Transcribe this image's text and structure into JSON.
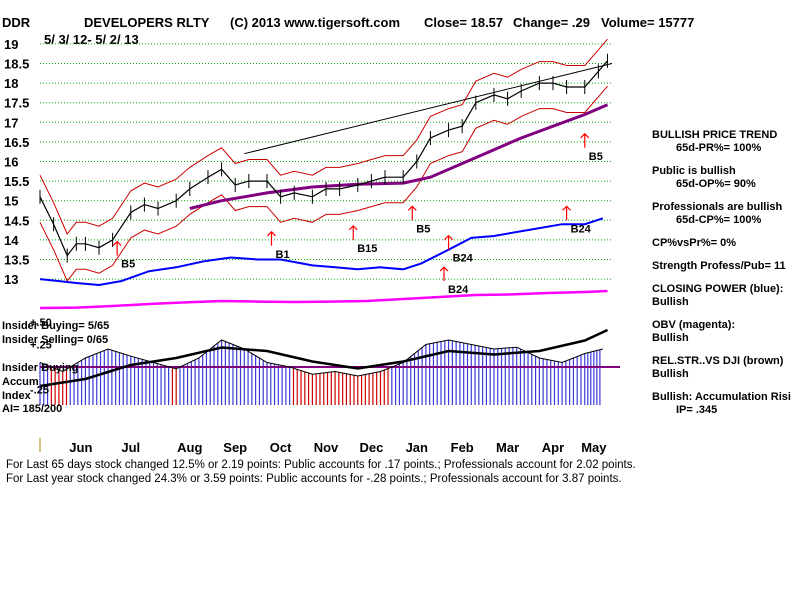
{
  "header": {
    "symbol": "DDR",
    "name": "DEVELOPERS RLTY",
    "copyright": "(C) 2013 www.tigersoft.com",
    "close_label": "Close=  18.57",
    "change_label": "Change= .29",
    "volume_label": "Volume= 15777",
    "date_range": "5/ 3/ 12- 5/ 2/ 13"
  },
  "chart_data": {
    "type": "line",
    "title": "DEVELOPERS RLTY",
    "price_axis": {
      "ylim": [
        12.9,
        19.1
      ],
      "ticks": [
        13,
        13.5,
        14,
        14.5,
        15,
        15.5,
        16,
        16.5,
        17,
        17.5,
        18,
        18.5,
        19
      ],
      "tick_labels": [
        "13",
        "13.5",
        "14",
        "14.5",
        "15",
        "15.5",
        "16",
        "16.5",
        "17",
        "17.5",
        "18",
        "18.5",
        "19"
      ]
    },
    "months": [
      "Jun",
      "Jul",
      "Aug",
      "Sep",
      "Oct",
      "Nov",
      "Dec",
      "Jan",
      "Feb",
      "Mar",
      "Apr",
      "May"
    ],
    "month_x_index": [
      0.9,
      2.0,
      3.3,
      4.3,
      5.3,
      6.3,
      7.3,
      8.3,
      9.3,
      10.3,
      11.3,
      12.2
    ],
    "x_domain": [
      0,
      12.6
    ],
    "price_series": {
      "name": "Close",
      "t": [
        0,
        0.3,
        0.6,
        0.8,
        1.0,
        1.3,
        1.6,
        2.0,
        2.3,
        2.6,
        3.0,
        3.3,
        3.7,
        4.0,
        4.3,
        4.6,
        5.0,
        5.3,
        5.6,
        6.0,
        6.3,
        6.6,
        7.0,
        7.3,
        7.6,
        8.0,
        8.3,
        8.6,
        9.0,
        9.3,
        9.6,
        10.0,
        10.3,
        10.6,
        11.0,
        11.3,
        11.6,
        12.0,
        12.3,
        12.5
      ],
      "values": [
        15.1,
        14.4,
        13.6,
        13.9,
        13.9,
        13.8,
        14.0,
        14.7,
        14.9,
        14.8,
        15.0,
        15.3,
        15.6,
        15.8,
        15.4,
        15.5,
        15.5,
        15.1,
        15.2,
        15.1,
        15.3,
        15.3,
        15.4,
        15.5,
        15.6,
        15.6,
        16.0,
        16.6,
        16.8,
        16.9,
        17.5,
        17.7,
        17.6,
        17.8,
        18.0,
        18.0,
        17.9,
        17.9,
        18.3,
        18.57
      ]
    },
    "moving_average_65d": {
      "t": [
        3.3,
        4.0,
        5.0,
        6.0,
        7.0,
        8.0,
        8.6,
        9.3,
        10.0,
        10.6,
        11.3,
        12.0,
        12.5
      ],
      "values": [
        14.8,
        15.0,
        15.2,
        15.35,
        15.42,
        15.45,
        15.6,
        15.95,
        16.3,
        16.6,
        16.9,
        17.2,
        17.45
      ]
    },
    "trendline": {
      "t": [
        4.5,
        12.6
      ],
      "values": [
        16.2,
        18.5
      ]
    },
    "closing_power": {
      "name": "CLOSING POWER (blue)",
      "t": [
        0,
        0.4,
        0.8,
        1.3,
        1.8,
        2.4,
        3.0,
        3.6,
        4.2,
        4.8,
        5.3,
        6.0,
        6.5,
        7.0,
        7.5,
        8.0,
        8.4,
        9.0,
        9.5,
        10.0,
        10.5,
        11.0,
        11.5,
        12.0,
        12.4
      ],
      "values": [
        13.0,
        12.95,
        12.9,
        12.85,
        12.95,
        13.2,
        13.3,
        13.45,
        13.55,
        13.5,
        13.5,
        13.35,
        13.3,
        13.25,
        13.3,
        13.25,
        13.4,
        13.75,
        14.05,
        14.1,
        14.2,
        14.3,
        14.4,
        14.4,
        14.55
      ]
    },
    "obv": {
      "name": "OBV (magenta)",
      "t": [
        0,
        0.8,
        1.6,
        2.4,
        3.2,
        4.0,
        4.8,
        5.6,
        6.4,
        7.2,
        8.0,
        8.8,
        9.6,
        10.4,
        11.2,
        12.0,
        12.5
      ],
      "values": [
        0.1,
        0.12,
        0.2,
        0.3,
        0.38,
        0.45,
        0.42,
        0.4,
        0.42,
        0.45,
        0.55,
        0.65,
        0.75,
        0.78,
        0.85,
        0.9,
        0.95
      ]
    },
    "relative_strength": {
      "name": "REL.STR..VS DJI (brown)",
      "t": [
        0,
        1.0,
        2.0,
        3.0,
        4.0,
        5.0,
        6.0,
        7.0,
        8.0,
        9.0,
        10.0,
        11.0,
        12.0,
        12.5
      ],
      "values": [
        0.2,
        0.3,
        0.5,
        0.6,
        0.75,
        0.7,
        0.55,
        0.45,
        0.55,
        0.7,
        0.65,
        0.7,
        0.85,
        1.0
      ]
    },
    "accumulation_index": {
      "ylim": [
        -0.25,
        0.5
      ],
      "ticks": [
        0.5,
        0.25,
        -0.25
      ],
      "tick_labels": [
        "+.50",
        "+.25",
        "-.25"
      ],
      "zero_label": "Insider Buying",
      "t": [
        0,
        0.5,
        1.0,
        1.5,
        2.0,
        2.5,
        3.0,
        3.5,
        4.0,
        4.5,
        5.0,
        5.5,
        6.0,
        6.5,
        7.0,
        7.5,
        8.0,
        8.5,
        9.0,
        9.5,
        10.0,
        10.5,
        11.0,
        11.5,
        12.0,
        12.4
      ],
      "values": [
        0.05,
        -0.05,
        0.1,
        0.2,
        0.12,
        0.05,
        -0.02,
        0.1,
        0.3,
        0.2,
        0.05,
        0.0,
        -0.08,
        -0.05,
        -0.1,
        -0.05,
        0.05,
        0.25,
        0.3,
        0.25,
        0.2,
        0.22,
        0.1,
        0.05,
        0.15,
        0.2
      ]
    },
    "signals": [
      {
        "label": "B5",
        "t": 1.7,
        "value": 13.6
      },
      {
        "label": "B1",
        "t": 5.1,
        "value": 13.85
      },
      {
        "label": "B15",
        "t": 6.9,
        "value": 14.0
      },
      {
        "label": "B5",
        "t": 8.2,
        "value": 14.5
      },
      {
        "label": "B24",
        "t": 9.0,
        "value": 13.75
      },
      {
        "label": "B24",
        "t": 8.9,
        "value": 12.95
      },
      {
        "label": "B24",
        "t": 11.6,
        "value": 14.5
      },
      {
        "label": "B5",
        "t": 12.0,
        "value": 16.35
      }
    ]
  },
  "chart_labels": {
    "insider_buying_count": "Insider Buying= 5/65",
    "insider_selling_count": "Insider Selling= 0/65",
    "insider_buying_line": "Insider Buying",
    "accum_index_1": "Accum",
    "accum_index_2": "Index",
    "ai_value": "AI= 185/200"
  },
  "sidebar": {
    "items": [
      {
        "title": "BULLISH PRICE TREND",
        "value": "65d-PR%= 100%"
      },
      {
        "title": "Public is bullish",
        "value": "65d-OP%= 90%"
      },
      {
        "title": "Professionals are bullish",
        "value": "65d-CP%= 100%"
      },
      {
        "title": "CP%vsPr%=  0%",
        "value": ""
      },
      {
        "title": "Strength Profess/Pub= 11",
        "value": ""
      },
      {
        "title": "CLOSING POWER (blue):",
        "value": "Bullish"
      },
      {
        "title": "OBV (magenta):",
        "value": "Bullish"
      },
      {
        "title": "REL.STR..VS DJI (brown)",
        "value": "Bullish"
      },
      {
        "title": "Bullish: Accumulation Risi",
        "value": "IP=  .345"
      }
    ]
  },
  "footer": {
    "line1": "For Last 65 days stock changed  12.5% or  2.19 points:  Public accounts for  .17 points.;  Professionals account for  2.02 points.",
    "line2": "For Last year stock changed  24.3% or  3.59 points:  Public accounts for -.28 points.;  Professionals account for  3.87 points."
  },
  "colors": {
    "price": "#000000",
    "ma": "#800080",
    "band": "#cc0000",
    "closing_power": "#0000ff",
    "obv": "#ff00ff",
    "accumulation": "#3a3ad8",
    "grid": "#00aa00",
    "arrow_red": "#ff0000",
    "arrow_blue": "#000080"
  }
}
